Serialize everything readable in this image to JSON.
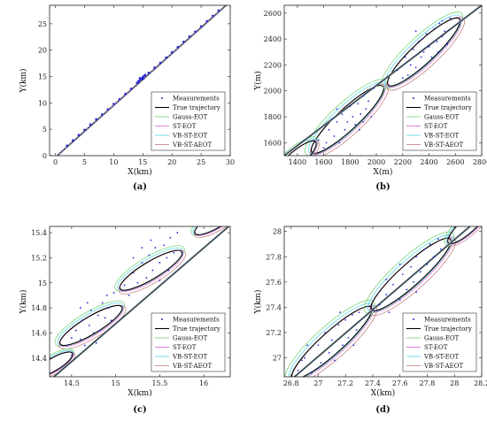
{
  "colors": {
    "measurement": "#2a2ad8",
    "true_trajectory": "#000000",
    "gauss_eot": "#7fd67f",
    "st_eot": "#e070d8",
    "vb_st_eot": "#5fd8e8",
    "vb_st_aeot": "#c88a8a"
  },
  "chart_data": [
    {
      "panel": "(a)",
      "type": "scatter",
      "xlabel": "X(km)",
      "ylabel": "Y(km)",
      "xlim": [
        -1,
        30
      ],
      "ylim": [
        0,
        28.5
      ],
      "xticks": [
        "0",
        "5",
        "10",
        "15",
        "20",
        "25",
        "30"
      ],
      "xtick_values": [
        0,
        5,
        10,
        15,
        20,
        25,
        30
      ],
      "yticks": [
        "0",
        "5",
        "10",
        "15",
        "20",
        "25"
      ],
      "ytick_values": [
        0,
        5,
        10,
        15,
        20,
        25
      ],
      "legend_position": "bottom-right",
      "legend": [
        "Measurements",
        "True trajectory",
        "Gauss-EOT",
        "ST-EOT",
        "VB-ST-EOT",
        "VB-ST-AEOT"
      ],
      "trajectory": {
        "x": [
          0.3,
          29.3
        ],
        "y": [
          0,
          28.5
        ]
      },
      "ellipses": [],
      "measurements": [
        [
          2,
          1.9
        ],
        [
          3,
          2.9
        ],
        [
          4,
          3.9
        ],
        [
          5,
          4.9
        ],
        [
          6,
          5.9
        ],
        [
          7,
          6.9
        ],
        [
          8,
          7.8
        ],
        [
          9,
          8.8
        ],
        [
          10,
          9.8
        ],
        [
          11,
          10.7
        ],
        [
          12,
          11.7
        ],
        [
          13,
          12.7
        ],
        [
          14,
          13.8
        ],
        [
          14.3,
          14.2
        ],
        [
          14.6,
          14.4
        ],
        [
          14.8,
          14.6
        ],
        [
          15,
          14.9
        ],
        [
          15.2,
          15.1
        ],
        [
          14.5,
          14.7
        ],
        [
          15.1,
          14.6
        ],
        [
          15.4,
          15.3
        ],
        [
          14.2,
          13.9
        ],
        [
          16,
          15.7
        ],
        [
          17,
          16.7
        ],
        [
          18,
          17.6
        ],
        [
          19,
          18.6
        ],
        [
          20,
          19.6
        ],
        [
          21,
          20.6
        ],
        [
          22,
          21.6
        ],
        [
          23,
          22.6
        ],
        [
          24,
          23.5
        ],
        [
          25,
          24.5
        ],
        [
          26,
          25.5
        ],
        [
          27,
          26.5
        ],
        [
          28,
          27.5
        ]
      ]
    },
    {
      "panel": "(b)",
      "type": "scatter",
      "xlabel": "X(m)",
      "ylabel": "Y(m)",
      "xlim": [
        1300,
        2800
      ],
      "ylim": [
        1500,
        2660
      ],
      "xticks": [
        "1400",
        "1600",
        "1800",
        "2000",
        "2200",
        "2400",
        "2600",
        "2800"
      ],
      "xtick_values": [
        1400,
        1600,
        1800,
        2000,
        2200,
        2400,
        2600,
        2800
      ],
      "yticks": [
        "1600",
        "1800",
        "2000",
        "2200",
        "2400",
        "2600"
      ],
      "ytick_values": [
        1600,
        1800,
        2000,
        2200,
        2400,
        2600
      ],
      "legend_position": "bottom-right",
      "legend": [
        "Measurements",
        "True trajectory",
        "Gauss-EOT",
        "ST-EOT",
        "VB-ST-EOT",
        "VB-ST-AEOT"
      ],
      "trajectory": {
        "x": [
          1300,
          2800
        ],
        "y": [
          1500,
          2660
        ]
      },
      "ellipses": [
        {
          "cx": 1780,
          "cy": 1780,
          "a": 380,
          "b": 90,
          "angle": 43
        },
        {
          "cx": 2360,
          "cy": 2300,
          "a": 380,
          "b": 90,
          "angle": 43
        },
        {
          "cx": 1360,
          "cy": 1440,
          "a": 250,
          "b": 70,
          "angle": 43
        }
      ],
      "measurements": [
        [
          1560,
          1620
        ],
        [
          1600,
          1560
        ],
        [
          1640,
          1700
        ],
        [
          1680,
          1650
        ],
        [
          1700,
          1760
        ],
        [
          1720,
          1600
        ],
        [
          1740,
          1820
        ],
        [
          1760,
          1700
        ],
        [
          1780,
          1760
        ],
        [
          1800,
          1880
        ],
        [
          1820,
          1800
        ],
        [
          1840,
          1740
        ],
        [
          1860,
          1900
        ],
        [
          1880,
          1820
        ],
        [
          1900,
          1960
        ],
        [
          1920,
          1860
        ],
        [
          1940,
          1920
        ],
        [
          1960,
          1800
        ],
        [
          1980,
          2020
        ],
        [
          1700,
          1860
        ],
        [
          1620,
          1600
        ],
        [
          1870,
          1700
        ],
        [
          1660,
          1780
        ],
        [
          1900,
          1760
        ],
        [
          2160,
          2160
        ],
        [
          2200,
          2100
        ],
        [
          2220,
          2260
        ],
        [
          2260,
          2200
        ],
        [
          2280,
          2320
        ],
        [
          2300,
          2180
        ],
        [
          2320,
          2380
        ],
        [
          2340,
          2260
        ],
        [
          2360,
          2300
        ],
        [
          2380,
          2440
        ],
        [
          2400,
          2340
        ],
        [
          2420,
          2260
        ],
        [
          2440,
          2480
        ],
        [
          2460,
          2380
        ],
        [
          2480,
          2520
        ],
        [
          2500,
          2420
        ],
        [
          2520,
          2460
        ],
        [
          2540,
          2360
        ],
        [
          2560,
          2560
        ],
        [
          2300,
          2460
        ],
        [
          2240,
          2120
        ],
        [
          2470,
          2300
        ],
        [
          2350,
          2400
        ],
        [
          2500,
          2540
        ]
      ]
    },
    {
      "panel": "(c)",
      "type": "scatter",
      "xlabel": "X(km)",
      "ylabel": "Y(km)",
      "xlim": [
        14.25,
        16.3
      ],
      "ylim": [
        14.25,
        15.45
      ],
      "xticks": [
        "14.5",
        "15",
        "15.5",
        "16"
      ],
      "xtick_values": [
        14.5,
        15,
        15.5,
        16
      ],
      "yticks": [
        "14.4",
        "14.6",
        "14.8",
        "15",
        "15.2",
        "15.4"
      ],
      "ytick_values": [
        14.4,
        14.6,
        14.8,
        15,
        15.2,
        15.4
      ],
      "legend_position": "bottom-right",
      "legend": [
        "Measurements",
        "True trajectory",
        "Gauss-EOT",
        "ST-EOT",
        "VB-ST-EOT",
        "VB-ST-AEOT"
      ],
      "trajectory": {
        "x": [
          14.25,
          16.3
        ],
        "y": [
          14.22,
          15.46
        ]
      },
      "ellipses": [
        {
          "cx": 14.72,
          "cy": 14.66,
          "a": 0.42,
          "b": 0.11,
          "angle": 31
        },
        {
          "cx": 15.4,
          "cy": 15.1,
          "a": 0.42,
          "b": 0.11,
          "angle": 31
        },
        {
          "cx": 14.3,
          "cy": 14.35,
          "a": 0.25,
          "b": 0.08,
          "angle": 31
        },
        {
          "cx": 16.15,
          "cy": 15.5,
          "a": 0.3,
          "b": 0.09,
          "angle": 31
        }
      ],
      "measurements": [
        [
          14.45,
          14.5
        ],
        [
          14.5,
          14.42
        ],
        [
          14.55,
          14.62
        ],
        [
          14.6,
          14.55
        ],
        [
          14.62,
          14.7
        ],
        [
          14.65,
          14.5
        ],
        [
          14.7,
          14.66
        ],
        [
          14.72,
          14.78
        ],
        [
          14.75,
          14.6
        ],
        [
          14.8,
          14.74
        ],
        [
          14.82,
          14.62
        ],
        [
          14.85,
          14.84
        ],
        [
          14.88,
          14.72
        ],
        [
          14.9,
          14.9
        ],
        [
          14.92,
          14.8
        ],
        [
          14.95,
          14.7
        ],
        [
          14.98,
          14.92
        ],
        [
          14.6,
          14.8
        ],
        [
          14.5,
          14.56
        ],
        [
          14.78,
          14.52
        ],
        [
          14.68,
          14.84
        ],
        [
          15.1,
          14.98
        ],
        [
          15.15,
          14.9
        ],
        [
          15.2,
          15.08
        ],
        [
          15.25,
          15.0
        ],
        [
          15.3,
          15.16
        ],
        [
          15.35,
          15.04
        ],
        [
          15.38,
          15.22
        ],
        [
          15.42,
          15.1
        ],
        [
          15.45,
          15.28
        ],
        [
          15.5,
          15.16
        ],
        [
          15.55,
          15.3
        ],
        [
          15.58,
          15.2
        ],
        [
          15.62,
          15.36
        ],
        [
          15.66,
          15.24
        ],
        [
          15.7,
          15.4
        ],
        [
          15.3,
          15.28
        ],
        [
          15.5,
          15.02
        ],
        [
          15.2,
          15.2
        ],
        [
          15.6,
          15.1
        ],
        [
          15.4,
          15.34
        ]
      ]
    },
    {
      "panel": "(d)",
      "type": "scatter",
      "xlabel": "X(km)",
      "ylabel": "Y(km)",
      "xlim": [
        26.75,
        28.2
      ],
      "ylim": [
        26.85,
        28.04
      ],
      "xticks": [
        "26.8",
        "27",
        "27.2",
        "27.4",
        "27.6",
        "27.8",
        "28",
        "28.2"
      ],
      "xtick_values": [
        26.8,
        27,
        27.2,
        27.4,
        27.6,
        27.8,
        28,
        28.2
      ],
      "yticks": [
        "27",
        "27.2",
        "27.4",
        "27.6",
        "27.8",
        "28"
      ],
      "ytick_values": [
        27,
        27.2,
        27.4,
        27.6,
        27.8,
        28
      ],
      "legend_position": "bottom-right",
      "legend": [
        "Measurements",
        "True trajectory",
        "Gauss-EOT",
        "ST-EOT",
        "VB-ST-EOT",
        "VB-ST-AEOT"
      ],
      "trajectory": {
        "x": [
          26.75,
          28.2
        ],
        "y": [
          26.78,
          28.12
        ]
      },
      "ellipses": [
        {
          "cx": 27.1,
          "cy": 27.12,
          "a": 0.4,
          "b": 0.09,
          "angle": 42
        },
        {
          "cx": 27.68,
          "cy": 27.66,
          "a": 0.4,
          "b": 0.09,
          "angle": 42
        },
        {
          "cx": 28.1,
          "cy": 28.05,
          "a": 0.2,
          "b": 0.06,
          "angle": 42
        }
      ],
      "measurements": [
        [
          26.85,
          26.9
        ],
        [
          26.9,
          27.0
        ],
        [
          26.95,
          26.88
        ],
        [
          27.0,
          27.1
        ],
        [
          27.02,
          26.96
        ],
        [
          27.05,
          27.2
        ],
        [
          27.08,
          27.04
        ],
        [
          27.1,
          27.14
        ],
        [
          27.12,
          26.98
        ],
        [
          27.15,
          27.26
        ],
        [
          27.18,
          27.1
        ],
        [
          27.2,
          27.3
        ],
        [
          27.22,
          27.16
        ],
        [
          27.25,
          27.34
        ],
        [
          27.28,
          27.22
        ],
        [
          27.3,
          27.36
        ],
        [
          26.92,
          27.1
        ],
        [
          27.0,
          26.92
        ],
        [
          27.16,
          27.36
        ],
        [
          27.26,
          27.1
        ],
        [
          26.88,
          26.98
        ],
        [
          27.45,
          27.42
        ],
        [
          27.5,
          27.5
        ],
        [
          27.52,
          27.36
        ],
        [
          27.55,
          27.58
        ],
        [
          27.6,
          27.46
        ],
        [
          27.62,
          27.66
        ],
        [
          27.65,
          27.54
        ],
        [
          27.68,
          27.72
        ],
        [
          27.7,
          27.6
        ],
        [
          27.72,
          27.8
        ],
        [
          27.75,
          27.68
        ],
        [
          27.78,
          27.86
        ],
        [
          27.8,
          27.74
        ],
        [
          27.82,
          27.9
        ],
        [
          27.85,
          27.8
        ],
        [
          27.88,
          27.94
        ],
        [
          27.6,
          27.74
        ],
        [
          27.72,
          27.52
        ],
        [
          27.9,
          27.86
        ],
        [
          27.5,
          27.62
        ]
      ]
    }
  ]
}
